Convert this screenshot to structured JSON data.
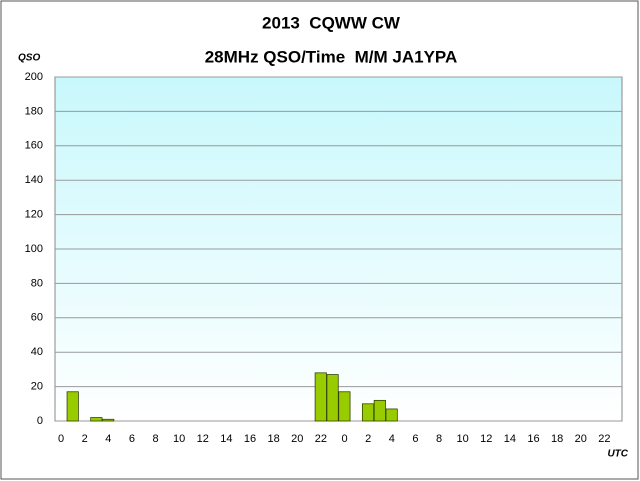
{
  "chart_data": {
    "type": "bar",
    "title": "2013  CQWW CW",
    "subtitle": "28MHz QSO/Time  M/M JA1YPA",
    "y_label": "QSO",
    "x_label": "UTC",
    "categories": [
      "0",
      null,
      "2",
      null,
      "4",
      null,
      "6",
      null,
      "8",
      null,
      "10",
      null,
      "12",
      null,
      "14",
      null,
      "16",
      null,
      "18",
      null,
      "20",
      null,
      "22",
      null,
      "0",
      null,
      "2",
      null,
      "4",
      null,
      "6",
      null,
      "8",
      null,
      "10",
      null,
      "12",
      null,
      "14",
      null,
      "16",
      null,
      "18",
      null,
      "20",
      null,
      "22",
      null
    ],
    "values": [
      0,
      17,
      0,
      2,
      1,
      0,
      0,
      0,
      0,
      0,
      0,
      0,
      0,
      0,
      0,
      0,
      0,
      0,
      0,
      0,
      0,
      0,
      28,
      27,
      17,
      0,
      10,
      12,
      7,
      0,
      0,
      0,
      0,
      0,
      0,
      0,
      0,
      0,
      0,
      0,
      0,
      0,
      0,
      0,
      0,
      0,
      0,
      0
    ],
    "color": "#99cc00",
    "ylim": [
      0,
      200
    ],
    "yticks": [
      0,
      20,
      40,
      60,
      80,
      100,
      120,
      140,
      160,
      180,
      200
    ],
    "grid": true
  }
}
